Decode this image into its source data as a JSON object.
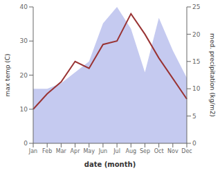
{
  "chart_data": {
    "type": "line",
    "xlabel": "date (month)",
    "ylabel": "max temp (C)",
    "y2label": "med. precipitation (kg/m2)",
    "categories": [
      "Jan",
      "Feb",
      "Mar",
      "Apr",
      "May",
      "Jun",
      "Jul",
      "Aug",
      "Sep",
      "Oct",
      "Nov",
      "Dec"
    ],
    "series": [
      {
        "type": "area",
        "axis": "y2",
        "color": "#c5caf0",
        "values": [
          10,
          10,
          11,
          13,
          15,
          22,
          25,
          21,
          13,
          23,
          17,
          12
        ]
      },
      {
        "type": "line",
        "color": "#993333",
        "values": [
          10,
          14.5,
          18,
          24,
          22,
          29,
          30,
          38,
          32,
          25,
          19,
          13
        ]
      }
    ],
    "ylim": [
      0,
      40
    ],
    "yticks": [
      0,
      10,
      20,
      30,
      40
    ],
    "y2lim": [
      0,
      25
    ],
    "y2ticks": [
      0,
      5,
      10,
      15,
      20,
      25
    ],
    "grid": false
  }
}
